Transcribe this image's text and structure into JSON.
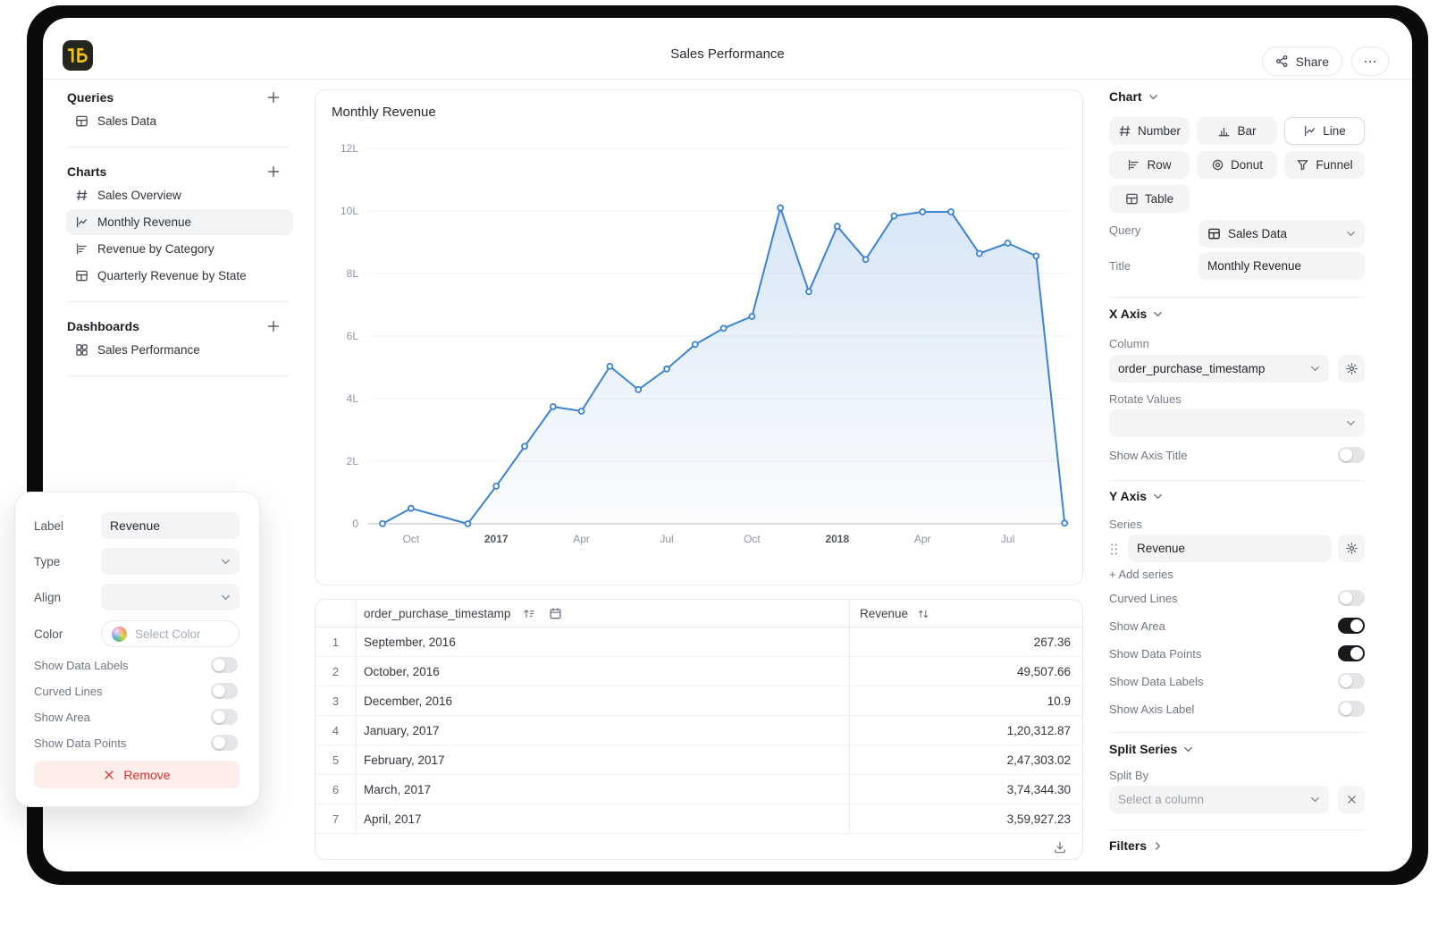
{
  "header": {
    "title": "Sales Performance",
    "share": "Share",
    "more": "more-options"
  },
  "sidebar": {
    "sections": [
      {
        "title": "Queries",
        "items": [
          {
            "icon": "table",
            "label": "Sales Data",
            "selected": false
          }
        ]
      },
      {
        "title": "Charts",
        "items": [
          {
            "icon": "hash",
            "label": "Sales Overview",
            "selected": false
          },
          {
            "icon": "line-chart",
            "label": "Monthly Revenue",
            "selected": true
          },
          {
            "icon": "row-chart",
            "label": "Revenue by Category",
            "selected": false
          },
          {
            "icon": "table",
            "label": "Quarterly Revenue by State",
            "selected": false
          }
        ]
      },
      {
        "title": "Dashboards",
        "items": [
          {
            "icon": "dashboard",
            "label": "Sales Performance",
            "selected": false
          }
        ]
      }
    ]
  },
  "chart_card": {
    "title": "Monthly Revenue"
  },
  "chart_data": {
    "type": "line",
    "title": "Monthly Revenue",
    "x_column": "order_purchase_timestamp",
    "series_name": "Revenue",
    "ylim": [
      0,
      1200000
    ],
    "y_ticks": [
      {
        "label": "0",
        "value": 0
      },
      {
        "label": "2L",
        "value": 200000
      },
      {
        "label": "4L",
        "value": 400000
      },
      {
        "label": "6L",
        "value": 600000
      },
      {
        "label": "8L",
        "value": 800000
      },
      {
        "label": "10L",
        "value": 1000000
      },
      {
        "label": "12L",
        "value": 1200000
      }
    ],
    "x_ticks": [
      {
        "label": "Oct",
        "m": 1,
        "year": false
      },
      {
        "label": "2017",
        "m": 4,
        "year": true
      },
      {
        "label": "Apr",
        "m": 7,
        "year": false
      },
      {
        "label": "Jul",
        "m": 10,
        "year": false
      },
      {
        "label": "Oct",
        "m": 13,
        "year": false
      },
      {
        "label": "2018",
        "m": 16,
        "year": true
      },
      {
        "label": "Apr",
        "m": 19,
        "year": false
      },
      {
        "label": "Jul",
        "m": 22,
        "year": false
      }
    ],
    "points": [
      {
        "label": "September, 2016",
        "m": 0,
        "value": 267.36,
        "exact": true
      },
      {
        "label": "October, 2016",
        "m": 1,
        "value": 49507.66,
        "exact": true
      },
      {
        "label": "December, 2016",
        "m": 3,
        "value": 10.9,
        "exact": true
      },
      {
        "label": "January, 2017",
        "m": 4,
        "value": 120312.87,
        "exact": true
      },
      {
        "label": "February, 2017",
        "m": 5,
        "value": 247303.02,
        "exact": true
      },
      {
        "label": "March, 2017",
        "m": 6,
        "value": 374344.3,
        "exact": true
      },
      {
        "label": "April, 2017",
        "m": 7,
        "value": 359927.23,
        "exact": true
      },
      {
        "label": "May, 2017",
        "m": 8,
        "value": 503000,
        "exact": false
      },
      {
        "label": "June, 2017",
        "m": 9,
        "value": 429000,
        "exact": false
      },
      {
        "label": "July, 2017",
        "m": 10,
        "value": 495000,
        "exact": false
      },
      {
        "label": "August, 2017",
        "m": 11,
        "value": 573000,
        "exact": false
      },
      {
        "label": "September, 2017",
        "m": 12,
        "value": 625000,
        "exact": false
      },
      {
        "label": "October, 2017",
        "m": 13,
        "value": 663000,
        "exact": false
      },
      {
        "label": "November, 2017",
        "m": 14,
        "value": 1010000,
        "exact": false
      },
      {
        "label": "December, 2017",
        "m": 15,
        "value": 742000,
        "exact": false
      },
      {
        "label": "January, 2018",
        "m": 16,
        "value": 951000,
        "exact": false
      },
      {
        "label": "February, 2018",
        "m": 17,
        "value": 845000,
        "exact": false
      },
      {
        "label": "March, 2018",
        "m": 18,
        "value": 984000,
        "exact": false
      },
      {
        "label": "April, 2018",
        "m": 19,
        "value": 997000,
        "exact": false
      },
      {
        "label": "May, 2018",
        "m": 20,
        "value": 997000,
        "exact": false
      },
      {
        "label": "June, 2018",
        "m": 21,
        "value": 864000,
        "exact": false
      },
      {
        "label": "July, 2018",
        "m": 22,
        "value": 897000,
        "exact": false
      },
      {
        "label": "August, 2018",
        "m": 23,
        "value": 856000,
        "exact": false
      },
      {
        "label": "September, 2018",
        "m": 24,
        "value": 2000,
        "exact": false
      }
    ]
  },
  "table": {
    "timestamp_header": "order_purchase_timestamp",
    "value_header": "Revenue",
    "rows": [
      {
        "n": "1",
        "date": "September, 2016",
        "value": "267.36"
      },
      {
        "n": "2",
        "date": "October, 2016",
        "value": "49,507.66"
      },
      {
        "n": "3",
        "date": "December, 2016",
        "value": "10.9"
      },
      {
        "n": "4",
        "date": "January, 2017",
        "value": "1,20,312.87"
      },
      {
        "n": "5",
        "date": "February, 2017",
        "value": "2,47,303.02"
      },
      {
        "n": "6",
        "date": "March, 2017",
        "value": "3,74,344.30"
      },
      {
        "n": "7",
        "date": "April, 2017",
        "value": "3,59,927.23"
      }
    ]
  },
  "inspector": {
    "section_chart": "Chart",
    "chart_types": [
      {
        "icon": "hash",
        "label": "Number",
        "selected": false
      },
      {
        "icon": "bar",
        "label": "Bar",
        "selected": false
      },
      {
        "icon": "line-chart",
        "label": "Line",
        "selected": true
      },
      {
        "icon": "row-chart",
        "label": "Row",
        "selected": false
      },
      {
        "icon": "donut",
        "label": "Donut",
        "selected": false
      },
      {
        "icon": "funnel",
        "label": "Funnel",
        "selected": false
      },
      {
        "icon": "table",
        "label": "Table",
        "selected": false
      }
    ],
    "query_label": "Query",
    "query_value": "Sales Data",
    "title_label": "Title",
    "title_value": "Monthly Revenue",
    "x_axis": {
      "heading": "X Axis",
      "column_label": "Column",
      "column_value": "order_purchase_timestamp",
      "rotate_label": "Rotate Values",
      "show_axis_title": {
        "label": "Show Axis Title",
        "on": false
      }
    },
    "y_axis": {
      "heading": "Y Axis",
      "series_label": "Series",
      "series_value": "Revenue",
      "add_series": "+ Add series",
      "toggles": [
        {
          "label": "Curved Lines",
          "on": false
        },
        {
          "label": "Show Area",
          "on": true
        },
        {
          "label": "Show Data Points",
          "on": true
        },
        {
          "label": "Show Data Labels",
          "on": false
        },
        {
          "label": "Show Axis Label",
          "on": false
        }
      ]
    },
    "split": {
      "heading": "Split Series",
      "label": "Split By",
      "placeholder": "Select a column"
    },
    "filters_heading": "Filters"
  },
  "series_popover": {
    "label_label": "Label",
    "label_value": "Revenue",
    "type_label": "Type",
    "align_label": "Align",
    "color_label": "Color",
    "color_placeholder": "Select Color",
    "toggles": [
      {
        "label": "Show Data Labels",
        "on": false
      },
      {
        "label": "Curved Lines",
        "on": false
      },
      {
        "label": "Show Area",
        "on": false
      },
      {
        "label": "Show Data Points",
        "on": false
      }
    ],
    "remove_label": "Remove"
  },
  "colors": {
    "accent": "#3c83d4",
    "grid": "#f2f3f5",
    "zero_line": "#b9bec6",
    "tick_text": "#8f959e",
    "year_text": "#52575e",
    "toggle_on": "#17191c",
    "logo_bg": "#24271e",
    "logo_glyph": "#f2c21b",
    "remove_text": "#d7342a",
    "remove_bg": "#fdeeec"
  }
}
